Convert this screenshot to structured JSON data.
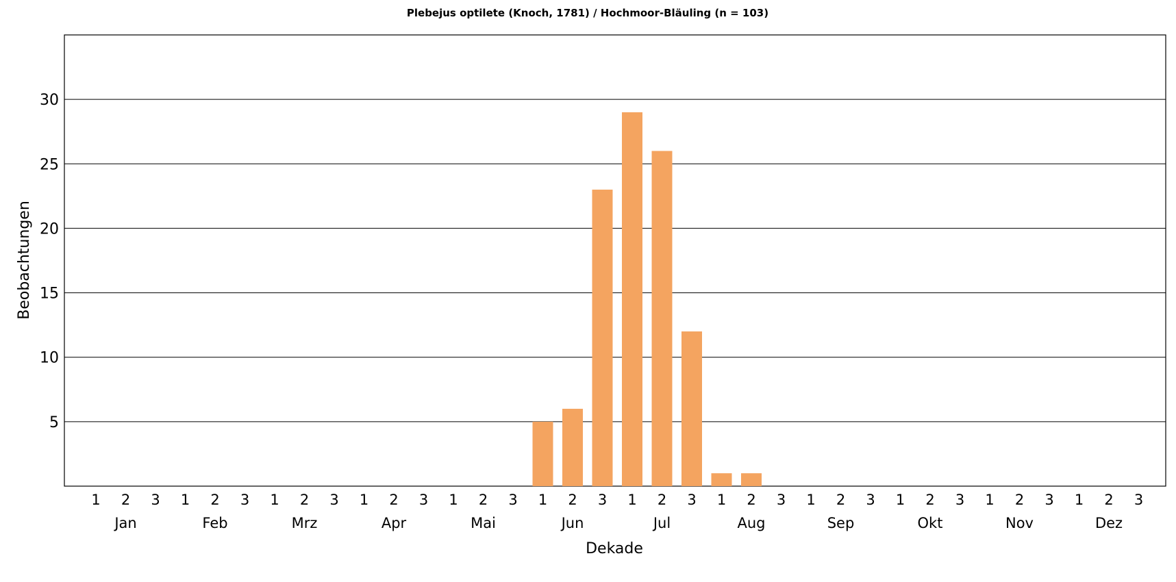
{
  "chart_data": {
    "type": "bar",
    "title": "Plebejus optilete (Knoch, 1781) / Hochmoor-Bläuling (n = 103)",
    "xlabel": "Dekade",
    "ylabel": "Beobachtungen",
    "months": [
      "Jan",
      "Feb",
      "Mrz",
      "Apr",
      "Mai",
      "Jun",
      "Jul",
      "Aug",
      "Sep",
      "Okt",
      "Nov",
      "Dez"
    ],
    "decade_labels": [
      "1",
      "2",
      "3"
    ],
    "categories": [
      "Jan 1",
      "Jan 2",
      "Jan 3",
      "Feb 1",
      "Feb 2",
      "Feb 3",
      "Mrz 1",
      "Mrz 2",
      "Mrz 3",
      "Apr 1",
      "Apr 2",
      "Apr 3",
      "Mai 1",
      "Mai 2",
      "Mai 3",
      "Jun 1",
      "Jun 2",
      "Jun 3",
      "Jul 1",
      "Jul 2",
      "Jul 3",
      "Aug 1",
      "Aug 2",
      "Aug 3",
      "Sep 1",
      "Sep 2",
      "Sep 3",
      "Okt 1",
      "Okt 2",
      "Okt 3",
      "Nov 1",
      "Nov 2",
      "Nov 3",
      "Dez 1",
      "Dez 2",
      "Dez 3"
    ],
    "values": [
      0,
      0,
      0,
      0,
      0,
      0,
      0,
      0,
      0,
      0,
      0,
      0,
      0,
      0,
      0,
      5,
      6,
      23,
      29,
      26,
      12,
      1,
      1,
      0,
      0,
      0,
      0,
      0,
      0,
      0,
      0,
      0,
      0,
      0,
      0,
      0
    ],
    "ylim": [
      0,
      35
    ],
    "yticks": [
      5,
      10,
      15,
      20,
      25,
      30
    ],
    "grid": true,
    "bar_color": "#f4a460",
    "grid_color": "#000000"
  }
}
